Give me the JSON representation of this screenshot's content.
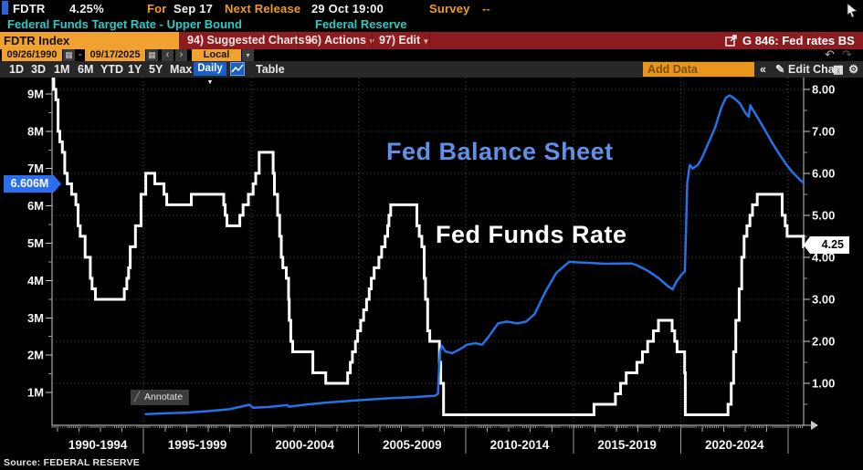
{
  "titlebar": {
    "ticker": "FDTR",
    "value": "4.25%",
    "for_label": "For",
    "for_date": "Sep 17",
    "next_release_label": "Next Release",
    "next_release_value": "29 Oct 19:00",
    "survey_label": "Survey",
    "survey_value": "--"
  },
  "description": {
    "security_name": "Federal Funds Target Rate - Upper Bound",
    "security_source": "Federal Reserve"
  },
  "menubar": {
    "security_input": "FDTR Index",
    "suggested_charts": "94) Suggested Charts",
    "actions": "96) Actions",
    "edit": "97) Edit",
    "chart_tag": "G 846: Fed rates BS"
  },
  "daterow": {
    "start_date": "09/26/1990",
    "range_separator": "-",
    "end_date": "09/17/2025",
    "currency": "Local CCY"
  },
  "toolbar": {
    "periods": [
      "1D",
      "3D",
      "1M",
      "6M",
      "YTD",
      "1Y",
      "5Y",
      "Max"
    ],
    "frequency": "Daily",
    "table_label": "Table",
    "add_data_placeholder": "Add Data",
    "edit_chart_label": "Edit Chart"
  },
  "icons": {
    "caret_down": "▾",
    "freq_caret": "▼",
    "calendar": "▦",
    "prev": "‹",
    "next": "›",
    "undo": "↶",
    "redo": "↷",
    "collapse": "«",
    "pencil": "✎",
    "annotate_chart": "▨",
    "gear": "⚙",
    "annotate_pencil": "╱"
  },
  "chart": {
    "balance_label": "Fed Balance Sheet",
    "rate_label": "Fed Funds Rate",
    "annotate_label": "Annotate",
    "left_badge": "6.606M",
    "right_badge": "4.25",
    "source_line": "Source: FEDERAL RESERVE"
  },
  "chart_data": {
    "type": "line",
    "grid": "dotted",
    "legend_position": "inline-labels",
    "x_axis": {
      "start": 1990.74,
      "end": 2025.72,
      "block_labels": [
        "1990-1994",
        "1995-1999",
        "2000-2004",
        "2005-2009",
        "2010-2014",
        "2015-2019",
        "2020-2024"
      ],
      "block_boundaries": [
        1990.74,
        1995,
        2000,
        2005,
        2010,
        2015,
        2020,
        2025,
        2025.72
      ]
    },
    "left_axis": {
      "series": "Fed Balance Sheet",
      "unit": "USD millions",
      "tick_labels": [
        "1M",
        "2M",
        "3M",
        "4M",
        "5M",
        "6M",
        "7M",
        "8M",
        "9M"
      ],
      "tick_values": [
        1,
        2,
        3,
        4,
        5,
        6,
        7,
        8,
        9
      ],
      "range": [
        0.12,
        9.44
      ],
      "last_value_badge": "6.606M"
    },
    "right_axis": {
      "series": "Fed Funds Rate",
      "unit": "%",
      "tick_labels": [
        "1.00",
        "2.00",
        "3.00",
        "4.00",
        "5.00",
        "6.00",
        "7.00",
        "8.00"
      ],
      "tick_values": [
        1,
        2,
        3,
        4,
        5,
        6,
        7,
        8
      ],
      "range": [
        0,
        8.28
      ],
      "last_value_badge": "4.25"
    },
    "series": [
      {
        "name": "Fed Funds Rate",
        "axis": "right",
        "color": "#ffffff",
        "style": "step",
        "points": [
          [
            1990.74,
            8.25
          ],
          [
            1990.82,
            8.0
          ],
          [
            1990.92,
            7.75
          ],
          [
            1991.02,
            7.0
          ],
          [
            1991.1,
            6.75
          ],
          [
            1991.22,
            6.5
          ],
          [
            1991.33,
            6.0
          ],
          [
            1991.45,
            5.75
          ],
          [
            1991.65,
            5.5
          ],
          [
            1991.85,
            5.25
          ],
          [
            1991.95,
            4.75
          ],
          [
            1992.05,
            4.5
          ],
          [
            1992.28,
            4.0
          ],
          [
            1992.52,
            3.5
          ],
          [
            1992.6,
            3.25
          ],
          [
            1992.76,
            3.0
          ],
          [
            1994.1,
            3.25
          ],
          [
            1994.22,
            3.5
          ],
          [
            1994.3,
            3.75
          ],
          [
            1994.38,
            4.25
          ],
          [
            1994.62,
            4.75
          ],
          [
            1994.88,
            5.5
          ],
          [
            1995.1,
            6.0
          ],
          [
            1995.52,
            5.75
          ],
          [
            1995.95,
            5.5
          ],
          [
            1996.08,
            5.25
          ],
          [
            1997.22,
            5.5
          ],
          [
            1998.73,
            5.25
          ],
          [
            1998.8,
            5.0
          ],
          [
            1998.88,
            4.75
          ],
          [
            1999.48,
            5.0
          ],
          [
            1999.63,
            5.25
          ],
          [
            1999.88,
            5.5
          ],
          [
            2000.1,
            5.75
          ],
          [
            2000.22,
            6.0
          ],
          [
            2000.38,
            6.5
          ],
          [
            2001.03,
            6.0
          ],
          [
            2001.09,
            5.5
          ],
          [
            2001.24,
            5.0
          ],
          [
            2001.33,
            4.5
          ],
          [
            2001.41,
            4.0
          ],
          [
            2001.48,
            3.75
          ],
          [
            2001.64,
            3.5
          ],
          [
            2001.75,
            3.0
          ],
          [
            2001.78,
            2.5
          ],
          [
            2001.85,
            2.0
          ],
          [
            2001.94,
            1.75
          ],
          [
            2002.88,
            1.25
          ],
          [
            2003.48,
            1.0
          ],
          [
            2004.5,
            1.25
          ],
          [
            2004.62,
            1.5
          ],
          [
            2004.72,
            1.75
          ],
          [
            2004.86,
            2.0
          ],
          [
            2004.96,
            2.25
          ],
          [
            2005.1,
            2.5
          ],
          [
            2005.24,
            2.75
          ],
          [
            2005.38,
            3.0
          ],
          [
            2005.5,
            3.25
          ],
          [
            2005.6,
            3.5
          ],
          [
            2005.73,
            3.75
          ],
          [
            2005.95,
            4.0
          ],
          [
            2006.08,
            4.25
          ],
          [
            2006.24,
            4.5
          ],
          [
            2006.36,
            4.75
          ],
          [
            2006.42,
            5.0
          ],
          [
            2006.5,
            5.25
          ],
          [
            2007.72,
            4.75
          ],
          [
            2007.83,
            4.5
          ],
          [
            2007.95,
            4.25
          ],
          [
            2008.06,
            3.5
          ],
          [
            2008.12,
            3.0
          ],
          [
            2008.22,
            2.25
          ],
          [
            2008.32,
            2.0
          ],
          [
            2008.77,
            1.5
          ],
          [
            2008.83,
            1.0
          ],
          [
            2008.96,
            0.25
          ],
          [
            2015.96,
            0.5
          ],
          [
            2016.96,
            0.75
          ],
          [
            2017.2,
            1.0
          ],
          [
            2017.46,
            1.25
          ],
          [
            2017.96,
            1.5
          ],
          [
            2018.22,
            1.75
          ],
          [
            2018.46,
            2.0
          ],
          [
            2018.73,
            2.25
          ],
          [
            2018.96,
            2.5
          ],
          [
            2019.6,
            2.25
          ],
          [
            2019.72,
            2.0
          ],
          [
            2019.83,
            1.75
          ],
          [
            2020.18,
            1.25
          ],
          [
            2020.21,
            0.25
          ],
          [
            2022.2,
            0.5
          ],
          [
            2022.35,
            1.0
          ],
          [
            2022.46,
            1.75
          ],
          [
            2022.56,
            2.5
          ],
          [
            2022.72,
            3.25
          ],
          [
            2022.84,
            4.0
          ],
          [
            2022.95,
            4.5
          ],
          [
            2023.08,
            4.75
          ],
          [
            2023.22,
            5.0
          ],
          [
            2023.34,
            5.25
          ],
          [
            2023.56,
            5.5
          ],
          [
            2024.72,
            5.0
          ],
          [
            2024.86,
            4.75
          ],
          [
            2024.95,
            4.5
          ],
          [
            2025.71,
            4.25
          ]
        ]
      },
      {
        "name": "Fed Balance Sheet",
        "axis": "left",
        "color": "#2471e8",
        "style": "line",
        "points": [
          [
            1995.1,
            0.42
          ],
          [
            1996.0,
            0.44
          ],
          [
            1997.0,
            0.46
          ],
          [
            1998.0,
            0.5
          ],
          [
            1999.0,
            0.55
          ],
          [
            1999.92,
            0.67
          ],
          [
            2000.1,
            0.59
          ],
          [
            2000.8,
            0.61
          ],
          [
            2001.69,
            0.66
          ],
          [
            2001.78,
            0.62
          ],
          [
            2002.5,
            0.67
          ],
          [
            2003.5,
            0.73
          ],
          [
            2004.5,
            0.77
          ],
          [
            2005.5,
            0.81
          ],
          [
            2006.5,
            0.85
          ],
          [
            2007.5,
            0.87
          ],
          [
            2008.55,
            0.91
          ],
          [
            2008.7,
            0.96
          ],
          [
            2008.74,
            1.5
          ],
          [
            2008.8,
            2.1
          ],
          [
            2008.88,
            2.25
          ],
          [
            2009.05,
            2.1
          ],
          [
            2009.35,
            2.05
          ],
          [
            2009.7,
            2.15
          ],
          [
            2010.05,
            2.28
          ],
          [
            2010.45,
            2.32
          ],
          [
            2010.75,
            2.28
          ],
          [
            2011.0,
            2.45
          ],
          [
            2011.5,
            2.85
          ],
          [
            2011.9,
            2.9
          ],
          [
            2012.4,
            2.85
          ],
          [
            2012.8,
            2.9
          ],
          [
            2013.2,
            3.1
          ],
          [
            2013.7,
            3.7
          ],
          [
            2014.2,
            4.2
          ],
          [
            2014.8,
            4.5
          ],
          [
            2015.5,
            4.48
          ],
          [
            2016.5,
            4.45
          ],
          [
            2017.7,
            4.46
          ],
          [
            2018.0,
            4.4
          ],
          [
            2018.5,
            4.25
          ],
          [
            2019.0,
            4.05
          ],
          [
            2019.4,
            3.85
          ],
          [
            2019.62,
            3.76
          ],
          [
            2019.8,
            3.97
          ],
          [
            2020.05,
            4.17
          ],
          [
            2020.19,
            4.24
          ],
          [
            2020.24,
            5.3
          ],
          [
            2020.3,
            6.6
          ],
          [
            2020.42,
            7.1
          ],
          [
            2020.55,
            7.0
          ],
          [
            2020.8,
            7.1
          ],
          [
            2021.0,
            7.3
          ],
          [
            2021.3,
            7.7
          ],
          [
            2021.6,
            8.1
          ],
          [
            2021.9,
            8.65
          ],
          [
            2022.1,
            8.9
          ],
          [
            2022.28,
            8.96
          ],
          [
            2022.5,
            8.88
          ],
          [
            2022.75,
            8.75
          ],
          [
            2023.0,
            8.5
          ],
          [
            2023.16,
            8.39
          ],
          [
            2023.24,
            8.7
          ],
          [
            2023.35,
            8.58
          ],
          [
            2023.7,
            8.25
          ],
          [
            2024.0,
            7.95
          ],
          [
            2024.3,
            7.65
          ],
          [
            2024.6,
            7.38
          ],
          [
            2024.9,
            7.12
          ],
          [
            2025.2,
            6.9
          ],
          [
            2025.5,
            6.73
          ],
          [
            2025.72,
            6.61
          ]
        ]
      }
    ]
  }
}
